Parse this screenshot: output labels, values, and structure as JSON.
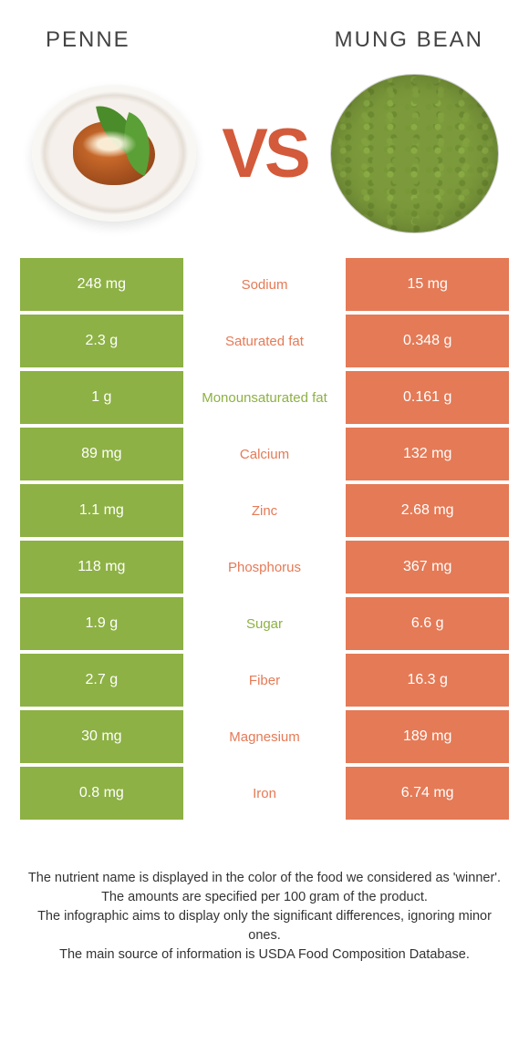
{
  "colors": {
    "left_bg": "#8db144",
    "right_bg": "#e57a56",
    "nutrient_left_color": "#e57a56",
    "nutrient_right_color": "#8db144",
    "value_text": "#ffffff",
    "vs_color": "#d35a3a",
    "title_color": "#444444",
    "footer_color": "#333333"
  },
  "foods": {
    "left": "PENNE",
    "right": "MUNG BEAN"
  },
  "vs": "VS",
  "rows": [
    {
      "left": "248 mg",
      "nutrient": "Sodium",
      "right": "15 mg",
      "winner": "left"
    },
    {
      "left": "2.3 g",
      "nutrient": "Saturated fat",
      "right": "0.348 g",
      "winner": "left"
    },
    {
      "left": "1 g",
      "nutrient": "Monounsaturated fat",
      "right": "0.161 g",
      "winner": "right"
    },
    {
      "left": "89 mg",
      "nutrient": "Calcium",
      "right": "132 mg",
      "winner": "left"
    },
    {
      "left": "1.1 mg",
      "nutrient": "Zinc",
      "right": "2.68 mg",
      "winner": "left"
    },
    {
      "left": "118 mg",
      "nutrient": "Phosphorus",
      "right": "367 mg",
      "winner": "left"
    },
    {
      "left": "1.9 g",
      "nutrient": "Sugar",
      "right": "6.6 g",
      "winner": "right"
    },
    {
      "left": "2.7 g",
      "nutrient": "Fiber",
      "right": "16.3 g",
      "winner": "left"
    },
    {
      "left": "30 mg",
      "nutrient": "Magnesium",
      "right": "189 mg",
      "winner": "left"
    },
    {
      "left": "0.8 mg",
      "nutrient": "Iron",
      "right": "6.74 mg",
      "winner": "left"
    }
  ],
  "footer": {
    "l1": "The nutrient name is displayed in the color of the food we considered as 'winner'.",
    "l2": "The amounts are specified per 100 gram of the product.",
    "l3": "The infographic aims to display only the significant differences, ignoring minor ones.",
    "l4": "The main source of information is USDA Food Composition Database."
  }
}
